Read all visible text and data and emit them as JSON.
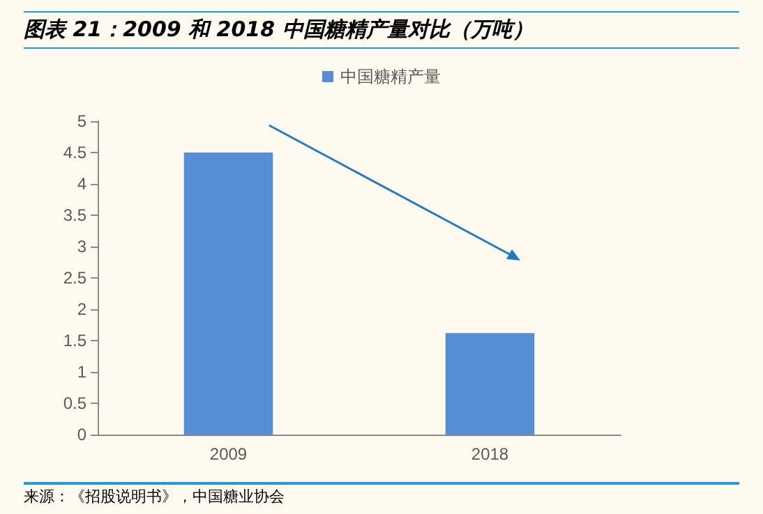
{
  "chart_data": {
    "type": "bar",
    "title": "图表 21：2009 和 2018 中国糖精产量对比（万吨）",
    "categories": [
      "2009",
      "2018"
    ],
    "series": [
      {
        "name": "中国糖精产量",
        "color": "#558ed5",
        "values": [
          4.5,
          1.62
        ]
      }
    ],
    "ylim": [
      0,
      5
    ],
    "yticks": [
      0,
      0.5,
      1,
      1.5,
      2,
      2.5,
      3,
      3.5,
      4,
      4.5,
      5
    ],
    "grid": false,
    "legend": "top",
    "annotations": [
      "来源：《招股说明书》，中国糖业协会"
    ]
  }
}
